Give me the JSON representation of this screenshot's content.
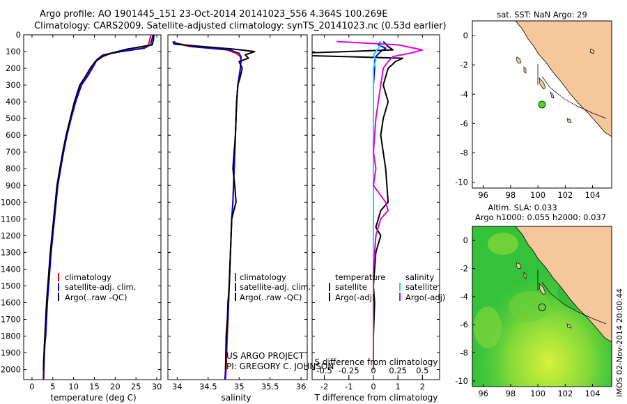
{
  "header": {
    "line1": "Argo profile: AO 1901445_151 23-Oct-2014 20141023_556 4.364S 100.269E",
    "line2": "Climatology: CARS2009. Satellite-adjusted climatology: synTS_20141023.nc (0.53d earlier)"
  },
  "chart_data": [
    {
      "type": "line",
      "id": "temperature",
      "xlabel": "temperature (deg C)",
      "ylabel": "",
      "xlim": [
        -2,
        31
      ],
      "ylim": [
        2060,
        0
      ],
      "xticks": [
        0,
        5,
        10,
        15,
        20,
        25,
        30
      ],
      "yticks": [
        0,
        100,
        200,
        300,
        400,
        500,
        600,
        700,
        800,
        900,
        1000,
        1100,
        1200,
        1300,
        1400,
        1500,
        1600,
        1700,
        1800,
        1900,
        2000
      ],
      "legend": [
        "climatology",
        "satellite-adj. clim.",
        "Argo(..raw -QC)"
      ],
      "series": [
        {
          "name": "climatology",
          "color": "#ff0000",
          "x": [
            28.6,
            28.4,
            28.0,
            26.5,
            21.0,
            17.0,
            15.5,
            14.4,
            13.2,
            11.8,
            10.4,
            9.3,
            8.3,
            7.5,
            6.8,
            6.1,
            5.7,
            5.3,
            4.9,
            4.5,
            4.2,
            3.9,
            3.6,
            3.4,
            3.2,
            3.0,
            2.9,
            2.8,
            2.75,
            2.7
          ],
          "y": [
            0,
            20,
            60,
            80,
            100,
            120,
            150,
            200,
            250,
            300,
            400,
            500,
            600,
            700,
            800,
            900,
            1000,
            1100,
            1200,
            1300,
            1400,
            1500,
            1600,
            1700,
            1800,
            1850,
            1900,
            1950,
            2000,
            2060
          ]
        },
        {
          "name": "satellite-adj. clim.",
          "color": "#0000ff",
          "x": [
            29.1,
            28.9,
            28.5,
            27.0,
            21.5,
            17.2,
            15.6,
            14.5,
            13.3,
            11.9,
            10.5,
            9.4,
            8.4,
            7.6,
            6.9,
            6.2,
            5.8,
            5.4,
            5.0,
            4.6,
            4.3,
            4.0,
            3.7,
            3.5,
            3.3,
            3.1,
            3.0,
            2.9,
            2.85,
            2.8
          ],
          "y": [
            0,
            20,
            60,
            80,
            100,
            120,
            150,
            200,
            250,
            300,
            400,
            500,
            600,
            700,
            800,
            900,
            1000,
            1100,
            1200,
            1300,
            1400,
            1500,
            1600,
            1700,
            1800,
            1850,
            1900,
            1950,
            2000,
            2060
          ]
        },
        {
          "name": "Argo(..raw -QC)",
          "color": "#000000",
          "x": [
            29.3,
            29.2,
            28.9,
            23.0,
            19.0,
            17.0,
            15.2,
            14.0,
            12.8,
            11.5,
            10.2,
            9.2,
            8.2,
            7.4,
            6.7,
            6.0,
            5.6,
            5.2,
            4.8,
            4.4,
            4.1,
            3.8,
            3.5,
            3.3,
            3.1,
            3.0,
            2.9,
            2.8,
            2.75
          ],
          "y": [
            0,
            30,
            60,
            85,
            110,
            130,
            160,
            200,
            250,
            300,
            400,
            500,
            600,
            700,
            800,
            900,
            1000,
            1100,
            1200,
            1300,
            1400,
            1500,
            1600,
            1700,
            1800,
            1850,
            1900,
            1950,
            2000
          ]
        }
      ]
    },
    {
      "type": "line",
      "id": "salinity",
      "xlabel": "salinity",
      "ylabel": "",
      "xlim": [
        33.85,
        36.1
      ],
      "ylim": [
        2060,
        0
      ],
      "xticks": [
        34,
        34.5,
        35,
        35.5,
        36
      ],
      "legend": [
        "climatology",
        "satellite-adj. clim.",
        "Argo(..raw -QC)"
      ],
      "series": [
        {
          "name": "climatology",
          "color": "#ff0000",
          "x": [
            33.95,
            33.98,
            34.2,
            34.8,
            34.95,
            35.02,
            35.03,
            35.02,
            35.0,
            34.98,
            34.96,
            34.95,
            34.94,
            34.93,
            34.92,
            34.91,
            34.9,
            34.88,
            34.87,
            34.86,
            34.85,
            34.84,
            34.83,
            34.82,
            34.81,
            34.8,
            34.79,
            34.78
          ],
          "y": [
            40,
            50,
            70,
            90,
            110,
            130,
            160,
            200,
            250,
            300,
            400,
            500,
            600,
            700,
            800,
            900,
            1000,
            1100,
            1200,
            1300,
            1400,
            1500,
            1600,
            1700,
            1800,
            1900,
            2000,
            2060
          ]
        },
        {
          "name": "satellite-adj. clim.",
          "color": "#0000ff",
          "x": [
            33.95,
            33.98,
            34.25,
            34.85,
            35.0,
            35.03,
            35.03,
            35.02,
            35.0,
            34.98,
            34.96,
            34.95,
            34.94,
            34.93,
            34.92,
            34.91,
            34.9,
            34.88,
            34.87,
            34.86,
            34.85,
            34.84,
            34.83,
            34.82,
            34.8,
            34.79,
            34.78,
            34.77
          ],
          "y": [
            40,
            50,
            70,
            90,
            110,
            130,
            160,
            200,
            250,
            300,
            400,
            500,
            600,
            700,
            800,
            900,
            1000,
            1100,
            1200,
            1300,
            1400,
            1500,
            1600,
            1700,
            1800,
            1900,
            2000,
            2060
          ]
        },
        {
          "name": "Argo(..raw -QC)",
          "color": "#000000",
          "x": [
            33.93,
            33.95,
            34.4,
            34.9,
            35.25,
            35.1,
            35.15,
            35.0,
            35.05,
            35.02,
            34.98,
            34.96,
            34.95,
            34.94,
            34.92,
            34.9,
            34.93,
            34.95,
            34.88,
            34.87,
            34.86,
            34.85,
            34.84,
            34.82,
            34.81,
            34.79,
            34.78
          ],
          "y": [
            40,
            55,
            70,
            85,
            100,
            120,
            140,
            160,
            200,
            250,
            300,
            400,
            500,
            600,
            700,
            800,
            900,
            1000,
            1100,
            1200,
            1300,
            1400,
            1500,
            1600,
            1700,
            1800,
            2000
          ]
        }
      ]
    },
    {
      "type": "line",
      "id": "difference",
      "xlabel": "T difference from climatology",
      "xlabel_top": "S difference from climatology",
      "xlim": [
        -2.5,
        2.7
      ],
      "ylim": [
        2060,
        0
      ],
      "xticks": [
        -2,
        -1,
        0,
        1,
        2
      ],
      "sticks": [
        -0.5,
        -0.25,
        0,
        0.25,
        0.5
      ],
      "legend_temperature": [
        "temperature",
        "satellite",
        "Argo(-adj)"
      ],
      "legend_salinity": [
        "salinity",
        "satellite",
        "Argo(-adj)"
      ],
      "series": [
        {
          "name": "temperature satellite",
          "color": "#0000ff",
          "x": [
            0.3,
            0.2,
            0.5,
            0.3,
            0.1,
            0.05,
            0.05,
            0.0,
            0.0,
            0.0,
            0.0,
            0.0,
            0.0,
            0.0,
            0.0,
            0.0,
            0.0,
            0.0,
            0.0
          ],
          "y": [
            40,
            60,
            80,
            100,
            130,
            160,
            200,
            300,
            400,
            500,
            700,
            900,
            1100,
            1300,
            1500,
            1700,
            1800,
            1900,
            2000
          ]
        },
        {
          "name": "temperature Argo(-adj)",
          "color": "#000000",
          "x": [
            0.4,
            0.6,
            0.8,
            -3.0,
            -2.5,
            1.2,
            0.9,
            0.6,
            0.5,
            0.4,
            0.6,
            0.4,
            0.3,
            0.5,
            0.6,
            0.3,
            0.2,
            0.1,
            0.3,
            0.1,
            0.05,
            0.0,
            0.05,
            0.0,
            0.0
          ],
          "y": [
            40,
            70,
            90,
            110,
            125,
            140,
            160,
            200,
            250,
            300,
            400,
            500,
            600,
            800,
            1000,
            1050,
            1100,
            1150,
            1200,
            1300,
            1400,
            1500,
            1600,
            1800,
            2000
          ]
        },
        {
          "name": "salinity satellite",
          "color": "#00e5ee",
          "x": [
            0.25,
            0.3,
            0.2,
            0.1,
            0.0,
            0.1,
            0.0,
            0.0,
            0.0,
            0.0,
            0.0,
            0.0,
            0.0,
            0.0
          ],
          "y": [
            40,
            60,
            80,
            100,
            120,
            150,
            200,
            300,
            500,
            800,
            1100,
            1400,
            1700,
            2000
          ]
        },
        {
          "name": "salinity Argo(-adj)",
          "color": "#e000e0",
          "x": [
            -1.5,
            1.0,
            2.0,
            1.5,
            0.8,
            0.6,
            0.4,
            0.3,
            0.2,
            0.1,
            0.0,
            0.1,
            0.0,
            0.5,
            0.6,
            0.3,
            0.1,
            0.0,
            0.0,
            0.0
          ],
          "y": [
            40,
            60,
            90,
            110,
            130,
            160,
            200,
            300,
            400,
            500,
            700,
            800,
            900,
            1000,
            1050,
            1100,
            1200,
            1400,
            1700,
            2000
          ]
        }
      ]
    }
  ],
  "sst_map": {
    "title": "sat. SST: NaN Argo: 29",
    "xticks": [
      "96",
      "98",
      "100",
      "102",
      "104"
    ],
    "yticks": [
      "0",
      "-2",
      "-4",
      "-6",
      "-8",
      "-10"
    ]
  },
  "sla_map": {
    "title1": "Altim. SLA: 0.033",
    "title2": "Argo h1000: 0.055 h2000: 0.037",
    "xticks": [
      "96",
      "98",
      "100",
      "102",
      "104"
    ],
    "yticks": [
      "0",
      "-2",
      "-4",
      "-6",
      "-8",
      "-10"
    ]
  },
  "credits": {
    "line1": "US ARGO PROJECT",
    "line2": "PI: GREGORY C. JOHNSON",
    "stamp": "IMOS 02-Nov-2014 20:00:44"
  },
  "colors": {
    "land": "#f6c79a",
    "sst_dot": "#44dd22",
    "sla_sea": "#33c23a"
  }
}
